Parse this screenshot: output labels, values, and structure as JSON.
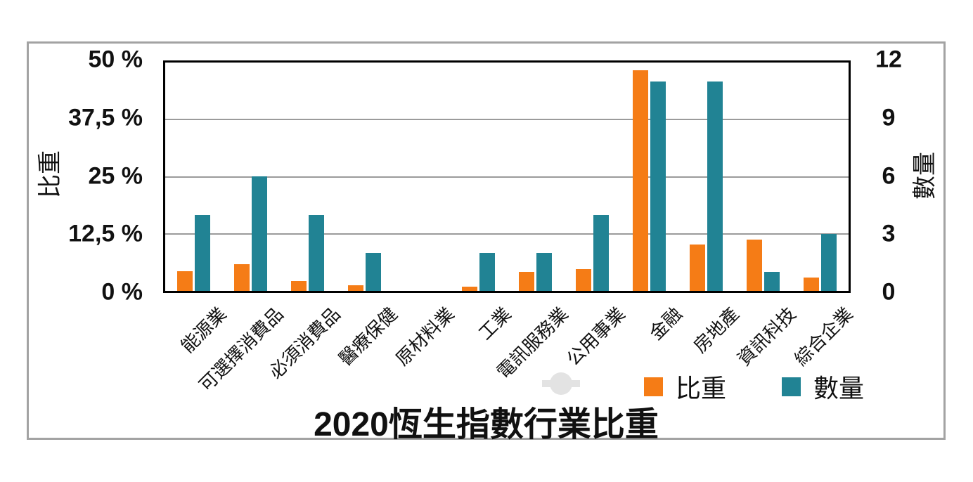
{
  "colors": {
    "weight_series": "#F57C16",
    "count_series": "#218394",
    "gridline": "#9B9B9B",
    "plot_border": "#000000",
    "outer_frame": "#A3A3A3",
    "text": "#111111",
    "handle": "#E3E3E3"
  },
  "chart_data": {
    "type": "bar",
    "title": "2020恆生指數行業比重",
    "categories": [
      "能源業",
      "可選擇消費品",
      "必須消費品",
      "醫療保健",
      "原材料業",
      "工業",
      "電訊服務業",
      "公用事業",
      "金融",
      "房地產",
      "資訊科技",
      "綜合企業"
    ],
    "series": [
      {
        "name": "比重",
        "axis": "left",
        "unit": "%",
        "color": "#F57C16",
        "values": [
          4.3,
          5.8,
          2.2,
          1.3,
          0,
          0.9,
          4.2,
          4.7,
          48.3,
          10.2,
          11.3,
          2.9
        ]
      },
      {
        "name": "數量",
        "axis": "right",
        "unit": "count",
        "color": "#218394",
        "values": [
          4,
          6,
          4,
          2,
          0,
          2,
          2,
          4,
          11,
          11,
          1,
          3
        ]
      }
    ],
    "left_axis": {
      "label": "比重",
      "ticks": [
        "50 %",
        "37,5 %",
        "25 %",
        "12,5 %",
        "0 %"
      ],
      "tick_values": [
        50,
        37.5,
        25,
        12.5,
        0
      ],
      "range": [
        0,
        50
      ],
      "grid_values": [
        37.5,
        25,
        12.5
      ]
    },
    "right_axis": {
      "label": "數量",
      "ticks": [
        "12",
        "9",
        "6",
        "3",
        "0"
      ],
      "tick_values": [
        12,
        9,
        6,
        3,
        0
      ],
      "range": [
        0,
        12
      ]
    },
    "grid": true,
    "legend_position": "bottom-right",
    "legend": [
      "比重",
      "數量"
    ]
  }
}
